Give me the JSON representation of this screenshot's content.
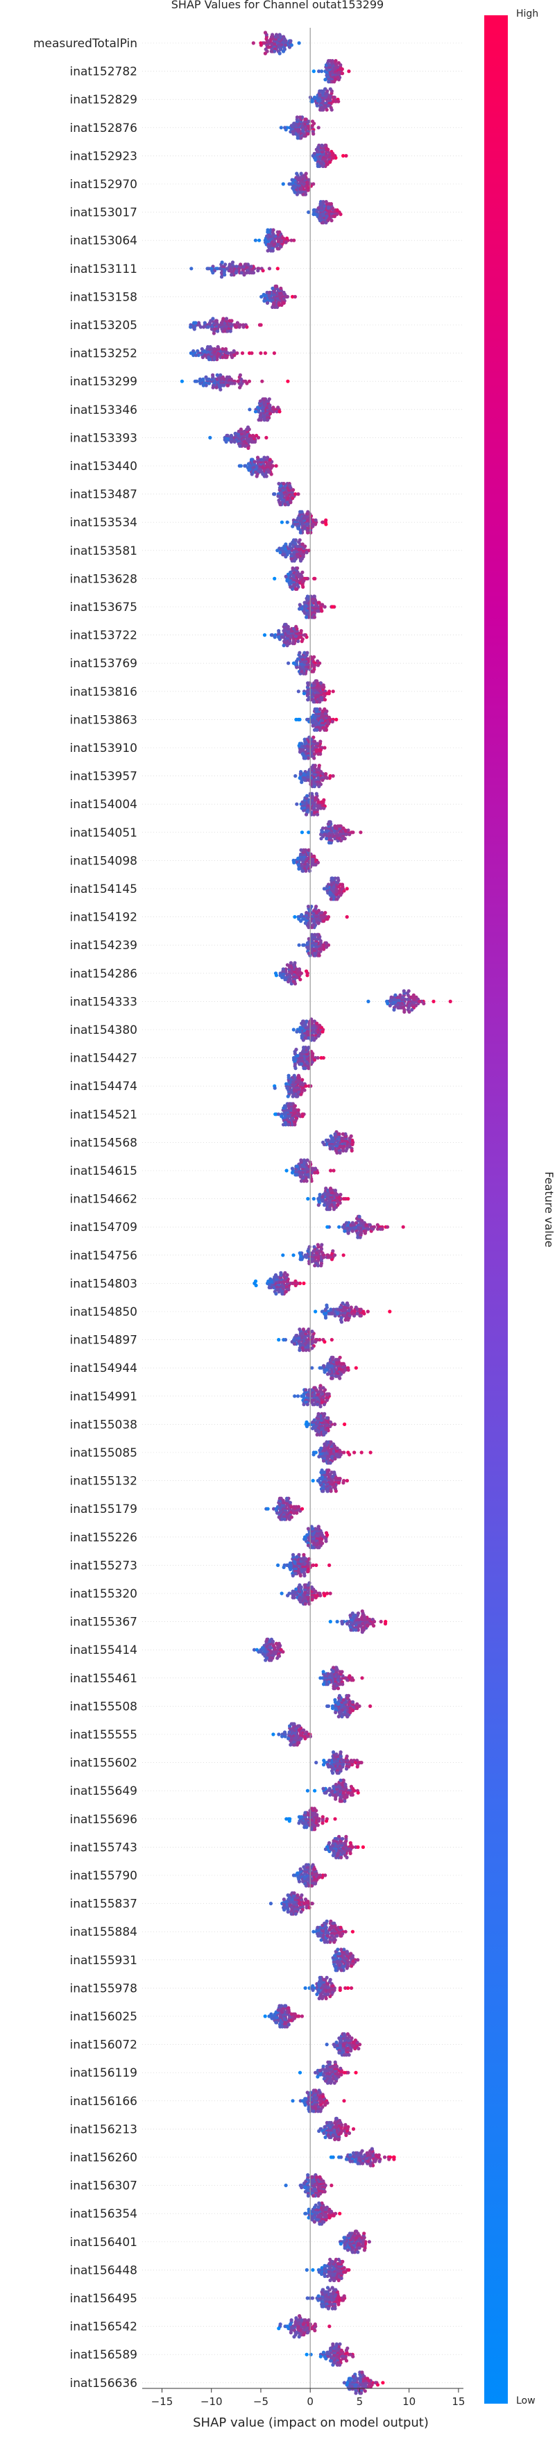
{
  "chart_data": {
    "type": "beeswarm",
    "title": "SHAP Values for Channel outat153299",
    "xlabel": "SHAP value (impact on model output)",
    "xlim": [
      -17,
      15.5
    ],
    "xticks": [
      -15,
      -10,
      -5,
      0,
      5,
      10,
      15
    ],
    "colorbar": {
      "label": "Feature value",
      "high_label": "High",
      "low_label": "Low",
      "low_color": "#008bfb",
      "high_color": "#ff0052",
      "gradient": [
        "#ff0052",
        "#cc00a0",
        "#8a3cd0",
        "#3b6cf0",
        "#008bfb"
      ]
    },
    "features": [
      {
        "name": "measuredTotalPin",
        "center": -3.5,
        "spread": 3.5,
        "direction": -1
      },
      {
        "name": "inat152782",
        "center": 2.3,
        "spread": 2.0,
        "direction": 1
      },
      {
        "name": "inat152829",
        "center": 1.4,
        "spread": 2.5,
        "direction": 1
      },
      {
        "name": "inat152876",
        "center": -0.8,
        "spread": 3.0,
        "direction": 1
      },
      {
        "name": "inat152923",
        "center": 1.2,
        "spread": 2.0,
        "direction": 1
      },
      {
        "name": "inat152970",
        "center": -1.0,
        "spread": 2.2,
        "direction": 1
      },
      {
        "name": "inat153017",
        "center": 1.5,
        "spread": 2.8,
        "direction": 1
      },
      {
        "name": "inat153064",
        "center": -3.5,
        "spread": 2.5,
        "direction": 1
      },
      {
        "name": "inat153111",
        "center": -7.5,
        "spread": 6.5,
        "direction": 1
      },
      {
        "name": "inat153158",
        "center": -3.5,
        "spread": 2.5,
        "direction": 1
      },
      {
        "name": "inat153205",
        "center": -9.0,
        "spread": 6.5,
        "direction": 1
      },
      {
        "name": "inat153252",
        "center": -9.5,
        "spread": 5.5,
        "direction": 1
      },
      {
        "name": "inat153299",
        "center": -8.5,
        "spread": 6.5,
        "direction": 1
      },
      {
        "name": "inat153346",
        "center": -4.5,
        "spread": 2.5,
        "direction": 1
      },
      {
        "name": "inat153393",
        "center": -7.0,
        "spread": 4.0,
        "direction": 1
      },
      {
        "name": "inat153440",
        "center": -5.0,
        "spread": 3.0,
        "direction": 1
      },
      {
        "name": "inat153487",
        "center": -2.5,
        "spread": 2.0,
        "direction": 1
      },
      {
        "name": "inat153534",
        "center": -0.5,
        "spread": 2.8,
        "direction": 1
      },
      {
        "name": "inat153581",
        "center": -1.5,
        "spread": 3.0,
        "direction": 1
      },
      {
        "name": "inat153628",
        "center": -1.5,
        "spread": 2.0,
        "direction": 1
      },
      {
        "name": "inat153675",
        "center": 0.2,
        "spread": 2.6,
        "direction": 1
      },
      {
        "name": "inat153722",
        "center": -2.0,
        "spread": 3.5,
        "direction": 1
      },
      {
        "name": "inat153769",
        "center": -0.5,
        "spread": 2.5,
        "direction": 1
      },
      {
        "name": "inat153816",
        "center": 0.5,
        "spread": 2.5,
        "direction": 1
      },
      {
        "name": "inat153863",
        "center": 1.0,
        "spread": 2.5,
        "direction": 1
      },
      {
        "name": "inat153910",
        "center": 0.0,
        "spread": 2.5,
        "direction": 1
      },
      {
        "name": "inat153957",
        "center": 0.5,
        "spread": 3.0,
        "direction": 1
      },
      {
        "name": "inat154004",
        "center": 0.2,
        "spread": 2.5,
        "direction": 1
      },
      {
        "name": "inat154051",
        "center": 2.5,
        "spread": 3.5,
        "direction": 1
      },
      {
        "name": "inat154098",
        "center": -0.3,
        "spread": 2.5,
        "direction": 1
      },
      {
        "name": "inat154145",
        "center": 2.5,
        "spread": 2.0,
        "direction": 1
      },
      {
        "name": "inat154192",
        "center": 0.5,
        "spread": 3.0,
        "direction": 1
      },
      {
        "name": "inat154239",
        "center": 0.5,
        "spread": 2.5,
        "direction": 1
      },
      {
        "name": "inat154286",
        "center": -2.0,
        "spread": 2.5,
        "direction": 1
      },
      {
        "name": "inat154333",
        "center": 9.5,
        "spread": 4.0,
        "direction": 1
      },
      {
        "name": "inat154380",
        "center": 0.0,
        "spread": 2.5,
        "direction": 1
      },
      {
        "name": "inat154427",
        "center": -0.5,
        "spread": 2.5,
        "direction": 1
      },
      {
        "name": "inat154474",
        "center": -1.5,
        "spread": 2.5,
        "direction": 1
      },
      {
        "name": "inat154521",
        "center": -2.0,
        "spread": 2.2,
        "direction": 1
      },
      {
        "name": "inat154568",
        "center": 3.0,
        "spread": 3.5,
        "direction": 1
      },
      {
        "name": "inat154615",
        "center": -0.5,
        "spread": 3.0,
        "direction": 1
      },
      {
        "name": "inat154662",
        "center": 2.0,
        "spread": 3.0,
        "direction": 1
      },
      {
        "name": "inat154709",
        "center": 5.0,
        "spread": 4.5,
        "direction": 1
      },
      {
        "name": "inat154756",
        "center": 0.5,
        "spread": 3.5,
        "direction": 1
      },
      {
        "name": "inat154803",
        "center": -3.0,
        "spread": 3.0,
        "direction": 1
      },
      {
        "name": "inat154850",
        "center": 3.5,
        "spread": 4.0,
        "direction": 1
      },
      {
        "name": "inat154897",
        "center": -0.5,
        "spread": 3.0,
        "direction": 1
      },
      {
        "name": "inat154944",
        "center": 2.5,
        "spread": 2.8,
        "direction": 1
      },
      {
        "name": "inat154991",
        "center": 0.5,
        "spread": 3.0,
        "direction": 1
      },
      {
        "name": "inat155038",
        "center": 1.2,
        "spread": 2.5,
        "direction": 1
      },
      {
        "name": "inat155085",
        "center": 2.0,
        "spread": 3.0,
        "direction": 1
      },
      {
        "name": "inat155132",
        "center": 2.0,
        "spread": 2.5,
        "direction": 1
      },
      {
        "name": "inat155179",
        "center": -2.5,
        "spread": 3.0,
        "direction": 1
      },
      {
        "name": "inat155226",
        "center": 0.5,
        "spread": 2.5,
        "direction": 1
      },
      {
        "name": "inat155273",
        "center": -1.0,
        "spread": 2.5,
        "direction": 1
      },
      {
        "name": "inat155320",
        "center": -0.5,
        "spread": 3.0,
        "direction": 1
      },
      {
        "name": "inat155367",
        "center": 5.0,
        "spread": 3.5,
        "direction": 1
      },
      {
        "name": "inat155414",
        "center": -4.0,
        "spread": 2.5,
        "direction": 1
      },
      {
        "name": "inat155461",
        "center": 2.5,
        "spread": 2.8,
        "direction": 1
      },
      {
        "name": "inat155508",
        "center": 3.5,
        "spread": 3.0,
        "direction": 1
      },
      {
        "name": "inat155555",
        "center": -1.5,
        "spread": 3.0,
        "direction": 1
      },
      {
        "name": "inat155602",
        "center": 3.0,
        "spread": 3.5,
        "direction": 1
      },
      {
        "name": "inat155649",
        "center": 3.0,
        "spread": 3.5,
        "direction": 1
      },
      {
        "name": "inat155696",
        "center": 0.0,
        "spread": 2.5,
        "direction": 1
      },
      {
        "name": "inat155743",
        "center": 3.0,
        "spread": 3.0,
        "direction": 1
      },
      {
        "name": "inat155790",
        "center": 0.0,
        "spread": 2.5,
        "direction": 1
      },
      {
        "name": "inat155837",
        "center": -1.5,
        "spread": 3.0,
        "direction": 1
      },
      {
        "name": "inat155884",
        "center": 2.0,
        "spread": 3.0,
        "direction": 1
      },
      {
        "name": "inat155931",
        "center": 3.5,
        "spread": 3.0,
        "direction": 1
      },
      {
        "name": "inat155978",
        "center": 1.5,
        "spread": 2.5,
        "direction": 1
      },
      {
        "name": "inat156025",
        "center": -2.5,
        "spread": 3.0,
        "direction": 1
      },
      {
        "name": "inat156072",
        "center": 3.5,
        "spread": 2.8,
        "direction": 1
      },
      {
        "name": "inat156119",
        "center": 2.0,
        "spread": 3.0,
        "direction": 1
      },
      {
        "name": "inat156166",
        "center": 0.5,
        "spread": 2.5,
        "direction": 1
      },
      {
        "name": "inat156213",
        "center": 2.5,
        "spread": 3.0,
        "direction": 1
      },
      {
        "name": "inat156260",
        "center": 5.5,
        "spread": 4.0,
        "direction": 1
      },
      {
        "name": "inat156307",
        "center": 0.5,
        "spread": 3.0,
        "direction": 1
      },
      {
        "name": "inat156354",
        "center": 1.0,
        "spread": 2.5,
        "direction": 1
      },
      {
        "name": "inat156401",
        "center": 4.5,
        "spread": 3.0,
        "direction": 1
      },
      {
        "name": "inat156448",
        "center": 2.5,
        "spread": 3.0,
        "direction": 1
      },
      {
        "name": "inat156495",
        "center": 2.0,
        "spread": 3.0,
        "direction": 1
      },
      {
        "name": "inat156542",
        "center": -1.0,
        "spread": 3.0,
        "direction": 1
      },
      {
        "name": "inat156589",
        "center": 2.5,
        "spread": 2.8,
        "direction": 1
      },
      {
        "name": "inat156636",
        "center": 5.0,
        "spread": 3.0,
        "direction": 1
      }
    ]
  }
}
